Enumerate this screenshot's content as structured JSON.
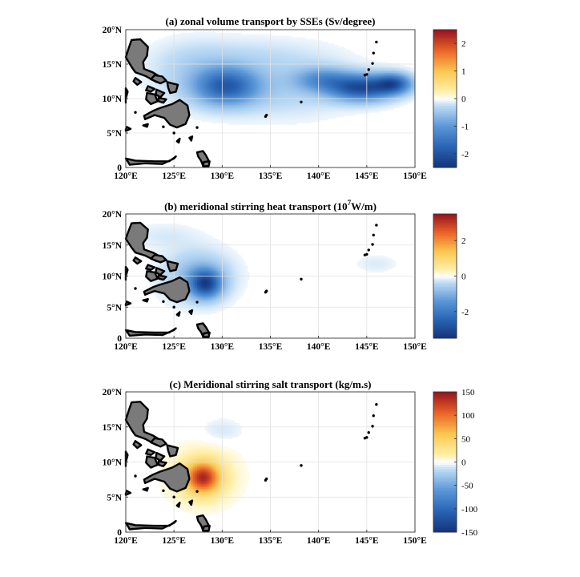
{
  "chart_data": [
    {
      "type": "heatmap",
      "title": "(a) zonal volume transport by SSEs (Sv/degree)",
      "title_sup": "",
      "title_suffix": "",
      "xlim": [
        120,
        150
      ],
      "ylim": [
        0,
        20
      ],
      "xticks": [
        120,
        125,
        130,
        135,
        140,
        145,
        150
      ],
      "xticklabels": [
        "120°E",
        "125°E",
        "130°E",
        "135°E",
        "140°E",
        "145°E",
        "150°E"
      ],
      "yticks": [
        0,
        5,
        10,
        15,
        20
      ],
      "yticklabels": [
        "0",
        "5°N",
        "10°N",
        "15°N",
        "20°N"
      ],
      "grid": true,
      "colormap": "diverging blue-white-red",
      "colorbar": {
        "limits": [
          -2.5,
          2.5
        ],
        "ticks": [
          -2,
          -1,
          0,
          1,
          2
        ],
        "ticklabels": [
          "-2",
          "-1",
          "0",
          "1",
          "2"
        ]
      },
      "features": [
        {
          "lon": 130.5,
          "lat": 11.8,
          "value": -1.6,
          "sigma_lon": 2.2,
          "sigma_lat": 1.8
        },
        {
          "lon": 136.0,
          "lat": 11.5,
          "value": -0.35,
          "sigma_lon": 5.0,
          "sigma_lat": 2.8
        },
        {
          "lon": 140.5,
          "lat": 12.8,
          "value": -0.9,
          "sigma_lon": 2.0,
          "sigma_lat": 1.2
        },
        {
          "lon": 144.5,
          "lat": 11.6,
          "value": -2.0,
          "sigma_lon": 2.3,
          "sigma_lat": 1.3
        },
        {
          "lon": 147.8,
          "lat": 12.2,
          "value": -1.6,
          "sigma_lon": 1.3,
          "sigma_lat": 1.0
        },
        {
          "lon": 127.0,
          "lat": 13.5,
          "value": -0.3,
          "sigma_lon": 3.0,
          "sigma_lat": 3.0
        },
        {
          "lon": 133.0,
          "lat": 16.0,
          "value": -0.2,
          "sigma_lon": 6.0,
          "sigma_lat": 2.0
        }
      ]
    },
    {
      "type": "heatmap",
      "title": "(b) meridional stirring heat transport (10",
      "title_sup": "7",
      "title_suffix": "W/m)",
      "xlim": [
        120,
        150
      ],
      "ylim": [
        0,
        20
      ],
      "xticks": [
        120,
        125,
        130,
        135,
        140,
        145,
        150
      ],
      "xticklabels": [
        "120°E",
        "125°E",
        "130°E",
        "135°E",
        "140°E",
        "145°E",
        "150°E"
      ],
      "yticks": [
        0,
        5,
        10,
        15,
        20
      ],
      "yticklabels": [
        "0",
        "5°N",
        "10°N",
        "15°N",
        "20°N"
      ],
      "grid": true,
      "colormap": "diverging blue-white-red",
      "colorbar": {
        "limits": [
          -3.5,
          3.5
        ],
        "ticks": [
          -2,
          0,
          2
        ],
        "ticklabels": [
          "-2",
          "0",
          "2"
        ]
      },
      "features": [
        {
          "lon": 128.3,
          "lat": 8.8,
          "value": -2.6,
          "sigma_lon": 1.1,
          "sigma_lat": 1.5
        },
        {
          "lon": 127.5,
          "lat": 10.0,
          "value": -0.9,
          "sigma_lon": 2.4,
          "sigma_lat": 2.8
        },
        {
          "lon": 124.0,
          "lat": 16.5,
          "value": -0.2,
          "sigma_lon": 2.5,
          "sigma_lat": 1.5
        },
        {
          "lon": 146.0,
          "lat": 12.0,
          "value": -0.2,
          "sigma_lon": 1.5,
          "sigma_lat": 1.0
        }
      ]
    },
    {
      "type": "heatmap",
      "title": "(c) Meridional stirring salt transport (kg/m.s)",
      "title_sup": "",
      "title_suffix": "",
      "xlim": [
        120,
        150
      ],
      "ylim": [
        0,
        20
      ],
      "xticks": [
        120,
        125,
        130,
        135,
        140,
        145,
        150
      ],
      "xticklabels": [
        "120°E",
        "125°E",
        "130°E",
        "135°E",
        "140°E",
        "145°E",
        "150°E"
      ],
      "yticks": [
        0,
        5,
        10,
        15,
        20
      ],
      "yticklabels": [
        "0",
        "5°N",
        "10°N",
        "15°N",
        "20°N"
      ],
      "grid": true,
      "colormap": "diverging blue-white-red",
      "colorbar": {
        "limits": [
          -150,
          150
        ],
        "ticks": [
          -150,
          -100,
          -50,
          0,
          50,
          100,
          150
        ],
        "ticklabels": [
          "-150",
          "-100",
          "-50",
          "0",
          "50",
          "100",
          "150"
        ]
      },
      "features": [
        {
          "lon": 128.0,
          "lat": 7.8,
          "value": 115,
          "sigma_lon": 1.2,
          "sigma_lat": 1.5
        },
        {
          "lon": 128.0,
          "lat": 8.0,
          "value": 25,
          "sigma_lon": 2.4,
          "sigma_lat": 2.8
        },
        {
          "lon": 130.0,
          "lat": 14.5,
          "value": -10,
          "sigma_lon": 1.5,
          "sigma_lat": 1.2
        }
      ]
    }
  ]
}
